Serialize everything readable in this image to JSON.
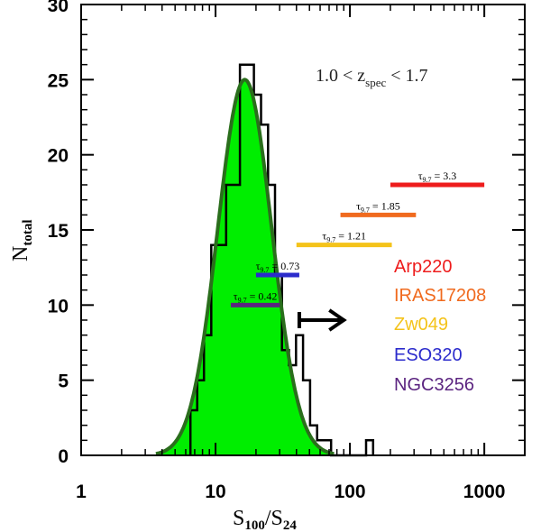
{
  "chart_data": {
    "type": "histogram",
    "xscale": "log",
    "xlim": [
      1,
      2000
    ],
    "ylim": [
      0,
      30
    ],
    "xticks": [
      {
        "value": 1,
        "label": "1"
      },
      {
        "value": 10,
        "label": "10"
      },
      {
        "value": 100,
        "label": "100"
      },
      {
        "value": 1000,
        "label": "1000"
      }
    ],
    "yticks": [
      {
        "value": 0,
        "label": "0"
      },
      {
        "value": 5,
        "label": "5"
      },
      {
        "value": 10,
        "label": "10"
      },
      {
        "value": 15,
        "label": "15"
      },
      {
        "value": 20,
        "label": "20"
      },
      {
        "value": 25,
        "label": "25"
      },
      {
        "value": 30,
        "label": "30"
      }
    ],
    "xlabel": {
      "main1": "S",
      "sub1": "100",
      "mid": "/S",
      "sub2": "24"
    },
    "ylabel": {
      "main": "N",
      "sub": "total"
    },
    "annotation": {
      "left": "1.0 < z",
      "sub": "spec",
      "right": " < 1.7"
    },
    "histogram": {
      "bin_edges": [
        6.5,
        7.3,
        8.2,
        9.3,
        10.5,
        12.0,
        13.5,
        15.2,
        17.1,
        19.3,
        21.8,
        24.6,
        27.7,
        31.2,
        35.2,
        39.7,
        44.8,
        50.5,
        57.0,
        64.2,
        72.4,
        81.6,
        92.0,
        103.7,
        117.0,
        131.9,
        148.7
      ],
      "counts": [
        3,
        5,
        8,
        14,
        14,
        18,
        18,
        26,
        26,
        24,
        22,
        18,
        12,
        7,
        6,
        8,
        5,
        2,
        1,
        1,
        0,
        0,
        0,
        0,
        0,
        1
      ]
    },
    "gaussian_fit": {
      "peak": 25,
      "center": 16.5,
      "sigma_log10": 0.2,
      "color": "#00ee00",
      "line_color": "#2a6e1c"
    },
    "templates": [
      {
        "name": "Arp220",
        "tau_label": "τ",
        "tau_sub": "9.7",
        "tau_value": " = 3.3",
        "xmin": 200,
        "xmax": 1000,
        "y": 18,
        "color": "#ee1c1c"
      },
      {
        "name": "IRAS17208",
        "tau_label": "τ",
        "tau_sub": "9.7",
        "tau_value": " = 1.85",
        "xmin": 85,
        "xmax": 310,
        "y": 16,
        "color": "#f06a1e"
      },
      {
        "name": "Zw049",
        "tau_label": "τ",
        "tau_sub": "9.7",
        "tau_value": " = 1.21",
        "xmin": 40,
        "xmax": 205,
        "y": 14,
        "color": "#f4c31a"
      },
      {
        "name": "ESO320",
        "tau_label": "τ",
        "tau_sub": "9.7",
        "tau_value": " = 0.73",
        "xmin": 20,
        "xmax": 42,
        "y": 12,
        "color": "#2b2bcc"
      },
      {
        "name": "NGC3256",
        "tau_label": "τ",
        "tau_sub": "9.7",
        "tau_value": " = 0.42",
        "xmin": 13,
        "xmax": 30,
        "y": 10,
        "color": "#5b2480"
      }
    ],
    "lower_limit_arrow": {
      "x_start": 42,
      "x_end": 90,
      "y": 9
    }
  }
}
